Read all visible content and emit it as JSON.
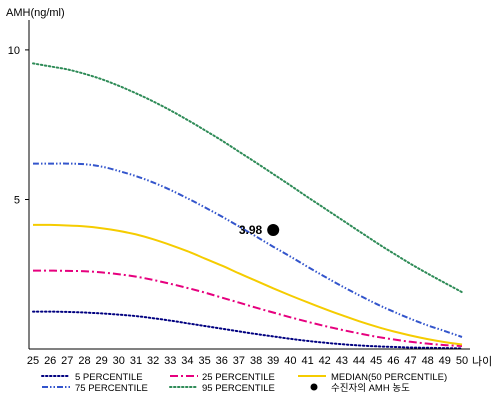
{
  "chart_data": {
    "type": "line",
    "ylabel": "AMH(ng/ml)",
    "xlabel": "나이",
    "x": [
      25,
      26,
      27,
      28,
      29,
      30,
      31,
      32,
      33,
      34,
      35,
      36,
      37,
      38,
      39,
      40,
      41,
      42,
      43,
      44,
      45,
      46,
      47,
      48,
      49,
      50
    ],
    "xlim": [
      25,
      50
    ],
    "ylim": [
      0,
      11
    ],
    "yticks": [
      5,
      10
    ],
    "grid": false,
    "legend_position": "bottom",
    "series": [
      {
        "name": "5 PERCENTILE",
        "color": "#000080",
        "dash": "dotted",
        "values": [
          1.25,
          1.25,
          1.24,
          1.22,
          1.19,
          1.15,
          1.1,
          1.03,
          0.95,
          0.86,
          0.77,
          0.68,
          0.59,
          0.5,
          0.42,
          0.34,
          0.27,
          0.21,
          0.16,
          0.12,
          0.09,
          0.07,
          0.05,
          0.04,
          0.03,
          0.02
        ]
      },
      {
        "name": "25 PERCENTILE",
        "color": "#e6007e",
        "dash": "dash-dot",
        "values": [
          2.62,
          2.62,
          2.61,
          2.6,
          2.56,
          2.5,
          2.42,
          2.31,
          2.18,
          2.04,
          1.89,
          1.72,
          1.55,
          1.38,
          1.22,
          1.06,
          0.91,
          0.77,
          0.64,
          0.52,
          0.41,
          0.32,
          0.24,
          0.18,
          0.13,
          0.1
        ]
      },
      {
        "name": "MEDIAN(50 PERCENTILE)",
        "color": "#f5cc00",
        "dash": "solid",
        "values": [
          4.15,
          4.15,
          4.13,
          4.1,
          4.04,
          3.95,
          3.83,
          3.67,
          3.48,
          3.27,
          3.03,
          2.79,
          2.53,
          2.28,
          2.03,
          1.79,
          1.56,
          1.34,
          1.13,
          0.93,
          0.75,
          0.59,
          0.45,
          0.33,
          0.23,
          0.15
        ]
      },
      {
        "name": "75 PERCENTILE",
        "color": "#3355cc",
        "dash": "dash-dot-dot",
        "values": [
          6.2,
          6.2,
          6.2,
          6.18,
          6.1,
          5.95,
          5.78,
          5.57,
          5.32,
          5.04,
          4.74,
          4.43,
          4.1,
          3.76,
          3.42,
          3.09,
          2.75,
          2.42,
          2.1,
          1.8,
          1.51,
          1.25,
          1.01,
          0.79,
          0.6,
          0.4
        ]
      },
      {
        "name": "95 PERCENTILE",
        "color": "#2e8b57",
        "dash": "dotted",
        "values": [
          9.55,
          9.45,
          9.35,
          9.2,
          9.02,
          8.8,
          8.55,
          8.28,
          7.98,
          7.66,
          7.32,
          6.97,
          6.6,
          6.23,
          5.85,
          5.47,
          5.08,
          4.7,
          4.32,
          3.94,
          3.56,
          3.2,
          2.85,
          2.52,
          2.21,
          1.9
        ]
      }
    ],
    "marker": {
      "legend_label": "수진자의 AMH 농도",
      "x": 39,
      "y": 3.98,
      "label": "3.98",
      "color": "#000000"
    }
  }
}
